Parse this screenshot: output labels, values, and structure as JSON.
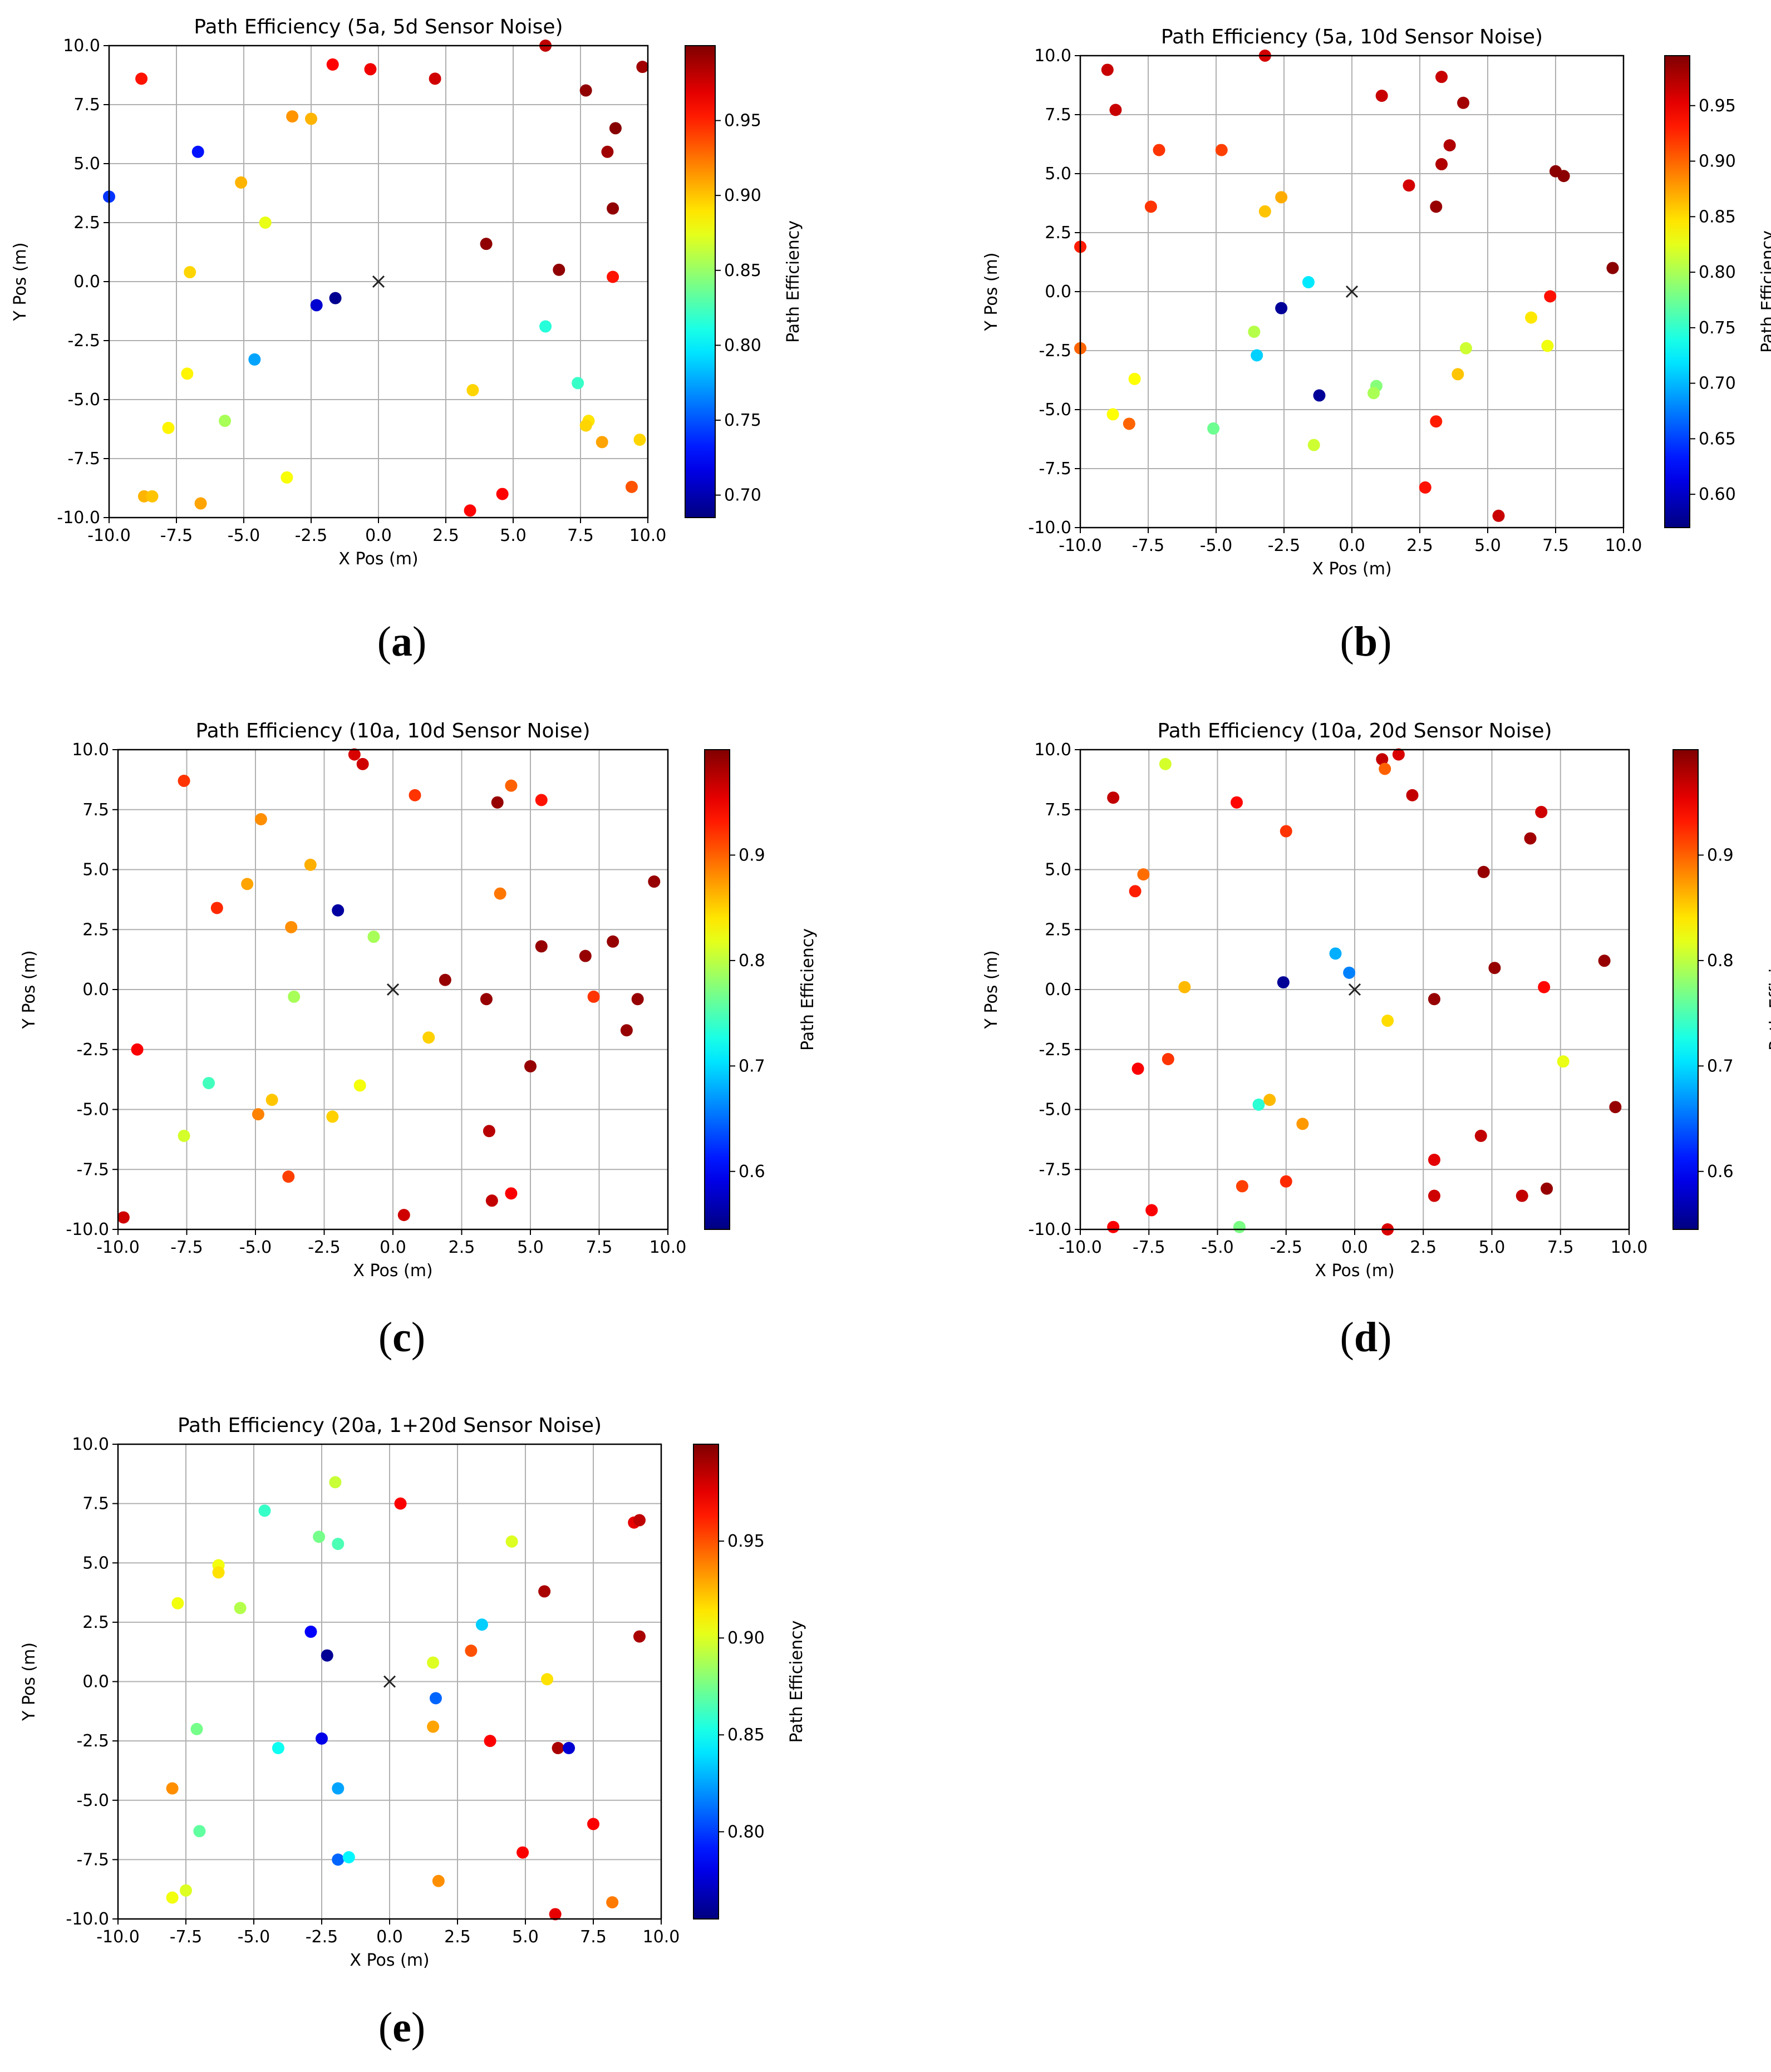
{
  "chart_data": [
    {
      "type": "scatter",
      "label": "a",
      "title": "Path Efficiency (5a, 5d Sensor Noise)",
      "xlabel": "X Pos (m)",
      "ylabel": "Y Pos (m)",
      "xlim": [
        -10,
        10
      ],
      "ylim": [
        -10,
        10
      ],
      "xticks": [
        "-10.0",
        "-7.5",
        "-5.0",
        "-2.5",
        "0.0",
        "2.5",
        "5.0",
        "7.5",
        "10.0"
      ],
      "yticks": [
        "-10.0",
        "-7.5",
        "-5.0",
        "-2.5",
        "0.0",
        "2.5",
        "5.0",
        "7.5",
        "10.0"
      ],
      "grid": true,
      "colorbar": {
        "label": "Path Efficiency",
        "min": 0.685,
        "max": 1.0,
        "ticks": [
          "0.70",
          "0.75",
          "0.80",
          "0.85",
          "0.90",
          "0.95"
        ]
      },
      "origin_marker": [
        0,
        0
      ],
      "points": [
        [
          -8.8,
          8.6,
          0.955
        ],
        [
          -1.7,
          9.2,
          0.96
        ],
        [
          -0.3,
          9.0,
          0.965
        ],
        [
          2.1,
          8.6,
          0.975
        ],
        [
          6.2,
          10.0,
          0.98
        ],
        [
          9.8,
          9.1,
          0.99
        ],
        [
          7.7,
          8.1,
          0.995
        ],
        [
          8.8,
          6.5,
          0.998
        ],
        [
          -6.7,
          5.5,
          0.73
        ],
        [
          -3.2,
          7.0,
          0.915
        ],
        [
          -2.5,
          6.9,
          0.905
        ],
        [
          8.5,
          5.5,
          0.99
        ],
        [
          -5.1,
          4.2,
          0.905
        ],
        [
          -4.2,
          2.5,
          0.875
        ],
        [
          -10.0,
          3.6,
          0.74
        ],
        [
          8.7,
          3.1,
          0.995
        ],
        [
          4.0,
          1.6,
          0.995
        ],
        [
          6.7,
          0.5,
          0.995
        ],
        [
          -7.0,
          0.4,
          0.895
        ],
        [
          8.7,
          0.2,
          0.955
        ],
        [
          -2.3,
          -1.0,
          0.71
        ],
        [
          -1.6,
          -0.7,
          0.69
        ],
        [
          0,
          0,
          null
        ],
        [
          -4.6,
          -3.3,
          0.775
        ],
        [
          6.2,
          -1.9,
          0.815
        ],
        [
          -7.1,
          -3.9,
          0.885
        ],
        [
          3.5,
          -4.6,
          0.895
        ],
        [
          7.4,
          -4.3,
          0.82
        ],
        [
          7.8,
          -5.9,
          0.89
        ],
        [
          7.7,
          -6.1,
          0.895
        ],
        [
          8.3,
          -6.8,
          0.91
        ],
        [
          9.7,
          -6.7,
          0.895
        ],
        [
          -7.8,
          -6.2,
          0.885
        ],
        [
          -5.7,
          -5.9,
          0.855
        ],
        [
          -3.4,
          -8.3,
          0.88
        ],
        [
          -8.7,
          -9.1,
          0.905
        ],
        [
          -8.4,
          -9.1,
          0.9
        ],
        [
          -6.6,
          -9.4,
          0.91
        ],
        [
          3.4,
          -9.7,
          0.96
        ],
        [
          4.6,
          -9.0,
          0.96
        ],
        [
          9.4,
          -8.7,
          0.935
        ]
      ]
    },
    {
      "type": "scatter",
      "label": "b",
      "title": "Path Efficiency (5a, 10d Sensor Noise)",
      "xlabel": "X Pos (m)",
      "ylabel": "Y Pos (m)",
      "xlim": [
        -10,
        10
      ],
      "ylim": [
        -10,
        10
      ],
      "xticks": [
        "-10.0",
        "-7.5",
        "-5.0",
        "-2.5",
        "0.0",
        "2.5",
        "5.0",
        "7.5",
        "10.0"
      ],
      "yticks": [
        "-10.0",
        "-7.5",
        "-5.0",
        "-2.5",
        "0.0",
        "2.5",
        "5.0",
        "7.5",
        "10.0"
      ],
      "grid": true,
      "colorbar": {
        "label": "Path Efficiency",
        "min": 0.57,
        "max": 0.995,
        "ticks": [
          "0.60",
          "0.65",
          "0.70",
          "0.75",
          "0.80",
          "0.85",
          "0.90",
          "0.95"
        ]
      },
      "origin_marker": [
        0,
        0
      ],
      "points": [
        [
          -9.0,
          9.4,
          0.965
        ],
        [
          -3.2,
          10.0,
          0.96
        ],
        [
          3.3,
          9.1,
          0.965
        ],
        [
          1.1,
          8.3,
          0.965
        ],
        [
          4.1,
          8.0,
          0.98
        ],
        [
          -8.7,
          7.7,
          0.965
        ],
        [
          -7.1,
          6.0,
          0.92
        ],
        [
          -4.8,
          6.0,
          0.915
        ],
        [
          3.6,
          6.2,
          0.975
        ],
        [
          3.3,
          5.4,
          0.975
        ],
        [
          7.5,
          5.1,
          0.99
        ],
        [
          7.8,
          4.9,
          0.99
        ],
        [
          2.1,
          4.5,
          0.96
        ],
        [
          -7.4,
          3.6,
          0.92
        ],
        [
          -2.6,
          4.0,
          0.87
        ],
        [
          -3.2,
          3.4,
          0.86
        ],
        [
          3.1,
          3.6,
          0.985
        ],
        [
          -10.0,
          1.9,
          0.93
        ],
        [
          9.6,
          1.0,
          0.99
        ],
        [
          -1.6,
          0.4,
          0.72
        ],
        [
          -2.6,
          -0.7,
          0.58
        ],
        [
          0,
          0,
          null
        ],
        [
          7.3,
          -0.2,
          0.935
        ],
        [
          6.6,
          -1.1,
          0.845
        ],
        [
          -3.6,
          -1.7,
          0.805
        ],
        [
          -3.5,
          -2.7,
          0.71
        ],
        [
          4.2,
          -2.4,
          0.815
        ],
        [
          7.2,
          -2.3,
          0.83
        ],
        [
          -10.0,
          -2.4,
          0.9
        ],
        [
          -8.0,
          -3.7,
          0.835
        ],
        [
          3.9,
          -3.5,
          0.86
        ],
        [
          -1.2,
          -4.4,
          0.58
        ],
        [
          -8.8,
          -5.2,
          0.835
        ],
        [
          -8.2,
          -5.6,
          0.9
        ],
        [
          0.9,
          -4.0,
          0.785
        ],
        [
          0.8,
          -4.3,
          0.8
        ],
        [
          -5.1,
          -5.8,
          0.775
        ],
        [
          3.1,
          -5.5,
          0.93
        ],
        [
          -1.4,
          -6.5,
          0.815
        ],
        [
          2.7,
          -8.3,
          0.935
        ],
        [
          5.4,
          -9.5,
          0.965
        ]
      ]
    },
    {
      "type": "scatter",
      "label": "c",
      "title": "Path Efficiency (10a, 10d Sensor Noise)",
      "xlabel": "X Pos (m)",
      "ylabel": "Y Pos (m)",
      "xlim": [
        -10,
        10
      ],
      "ylim": [
        -10,
        10
      ],
      "xticks": [
        "-10.0",
        "-7.5",
        "-5.0",
        "-2.5",
        "0.0",
        "2.5",
        "5.0",
        "7.5",
        "10.0"
      ],
      "yticks": [
        "-10.0",
        "-7.5",
        "-5.0",
        "-2.5",
        "0.0",
        "2.5",
        "5.0",
        "7.5",
        "10.0"
      ],
      "grid": true,
      "colorbar": {
        "label": "Path Efficiency",
        "min": 0.545,
        "max": 1.0,
        "ticks": [
          "0.6",
          "0.7",
          "0.8",
          "0.9"
        ]
      },
      "origin_marker": [
        0,
        0
      ],
      "points": [
        [
          -7.6,
          8.7,
          0.92
        ],
        [
          -1.4,
          9.8,
          0.96
        ],
        [
          -1.1,
          9.4,
          0.965
        ],
        [
          0.8,
          8.1,
          0.92
        ],
        [
          4.3,
          8.5,
          0.9
        ],
        [
          5.4,
          7.9,
          0.935
        ],
        [
          3.8,
          7.8,
          0.99
        ],
        [
          -4.8,
          7.1,
          0.88
        ],
        [
          -3.0,
          5.2,
          0.865
        ],
        [
          -5.3,
          4.4,
          0.87
        ],
        [
          9.5,
          4.5,
          0.99
        ],
        [
          -6.4,
          3.4,
          0.925
        ],
        [
          3.9,
          4.0,
          0.89
        ],
        [
          -3.7,
          2.6,
          0.88
        ],
        [
          -2.0,
          3.3,
          0.56
        ],
        [
          -0.7,
          2.2,
          0.79
        ],
        [
          5.4,
          1.8,
          0.99
        ],
        [
          7.0,
          1.4,
          0.99
        ],
        [
          8.0,
          2.0,
          0.99
        ],
        [
          1.9,
          0.4,
          0.99
        ],
        [
          0,
          0,
          null
        ],
        [
          -3.6,
          -0.3,
          0.79
        ],
        [
          3.4,
          -0.4,
          0.99
        ],
        [
          7.3,
          -0.3,
          0.92
        ],
        [
          8.9,
          -0.4,
          0.99
        ],
        [
          1.3,
          -2.0,
          0.85
        ],
        [
          8.5,
          -1.7,
          0.99
        ],
        [
          -9.3,
          -2.5,
          0.945
        ],
        [
          5.0,
          -3.2,
          0.99
        ],
        [
          -6.7,
          -3.9,
          0.745
        ],
        [
          -1.2,
          -4.0,
          0.825
        ],
        [
          -4.4,
          -4.6,
          0.855
        ],
        [
          -4.9,
          -5.2,
          0.885
        ],
        [
          -2.2,
          -5.3,
          0.85
        ],
        [
          3.5,
          -5.9,
          0.975
        ],
        [
          -7.6,
          -6.1,
          0.81
        ],
        [
          -3.8,
          -7.8,
          0.915
        ],
        [
          3.6,
          -8.8,
          0.97
        ],
        [
          4.3,
          -8.5,
          0.945
        ],
        [
          -9.8,
          -9.5,
          0.965
        ],
        [
          0.4,
          -9.4,
          0.965
        ]
      ]
    },
    {
      "type": "scatter",
      "label": "d",
      "title": "Path Efficiency (10a, 20d Sensor Noise)",
      "xlabel": "X Pos (m)",
      "ylabel": "Y Pos (m)",
      "xlim": [
        -10,
        10
      ],
      "ylim": [
        -10,
        10
      ],
      "xticks": [
        "-10.0",
        "-7.5",
        "-5.0",
        "-2.5",
        "0.0",
        "2.5",
        "5.0",
        "7.5",
        "10.0"
      ],
      "yticks": [
        "-10.0",
        "-7.5",
        "-5.0",
        "-2.5",
        "0.0",
        "2.5",
        "5.0",
        "7.5",
        "10.0"
      ],
      "grid": true,
      "colorbar": {
        "label": "Path Efficiency",
        "min": 0.545,
        "max": 1.0,
        "ticks": [
          "0.6",
          "0.7",
          "0.8",
          "0.9"
        ]
      },
      "origin_marker": [
        0,
        0
      ],
      "points": [
        [
          -8.8,
          8.0,
          0.97
        ],
        [
          -6.9,
          9.4,
          0.81
        ],
        [
          1.0,
          9.6,
          0.97
        ],
        [
          1.1,
          9.2,
          0.9
        ],
        [
          1.6,
          9.8,
          0.96
        ],
        [
          2.1,
          8.1,
          0.97
        ],
        [
          -4.3,
          7.8,
          0.94
        ],
        [
          -2.5,
          6.6,
          0.92
        ],
        [
          6.8,
          7.4,
          0.965
        ],
        [
          6.4,
          6.3,
          0.985
        ],
        [
          -7.7,
          4.8,
          0.895
        ],
        [
          -8.0,
          4.1,
          0.93
        ],
        [
          4.7,
          4.9,
          0.99
        ],
        [
          -0.7,
          1.5,
          0.68
        ],
        [
          -0.2,
          0.7,
          0.66
        ],
        [
          -2.6,
          0.3,
          0.555
        ],
        [
          -6.2,
          0.1,
          0.86
        ],
        [
          5.1,
          0.9,
          0.99
        ],
        [
          9.1,
          1.2,
          0.99
        ],
        [
          0,
          0,
          null
        ],
        [
          2.9,
          -0.4,
          0.99
        ],
        [
          6.9,
          0.1,
          0.94
        ],
        [
          1.2,
          -1.3,
          0.845
        ],
        [
          -7.9,
          -3.3,
          0.945
        ],
        [
          -6.8,
          -2.9,
          0.92
        ],
        [
          7.6,
          -3.0,
          0.82
        ],
        [
          -3.5,
          -4.8,
          0.735
        ],
        [
          -3.1,
          -4.6,
          0.86
        ],
        [
          9.5,
          -4.9,
          0.99
        ],
        [
          -1.9,
          -5.6,
          0.875
        ],
        [
          4.6,
          -6.1,
          0.97
        ],
        [
          2.9,
          -7.1,
          0.955
        ],
        [
          -4.1,
          -8.2,
          0.915
        ],
        [
          -2.5,
          -8.0,
          0.925
        ],
        [
          2.9,
          -8.6,
          0.965
        ],
        [
          6.1,
          -8.6,
          0.97
        ],
        [
          7.0,
          -8.3,
          0.99
        ],
        [
          -8.8,
          -9.9,
          0.945
        ],
        [
          -7.4,
          -9.2,
          0.945
        ],
        [
          -4.2,
          -9.9,
          0.77
        ],
        [
          1.2,
          -10.0,
          0.96
        ]
      ]
    },
    {
      "type": "scatter",
      "label": "e",
      "title": "Path Efficiency (20a, 1+20d Sensor Noise)",
      "xlabel": "X Pos (m)",
      "ylabel": "Y Pos (m)",
      "xlim": [
        -10,
        10
      ],
      "ylim": [
        -10,
        10
      ],
      "xticks": [
        "-10.0",
        "-7.5",
        "-5.0",
        "-2.5",
        "0.0",
        "2.5",
        "5.0",
        "7.5",
        "10.0"
      ],
      "yticks": [
        "-10.0",
        "-7.5",
        "-5.0",
        "-2.5",
        "0.0",
        "2.5",
        "5.0",
        "7.5",
        "10.0"
      ],
      "grid": true,
      "colorbar": {
        "label": "Path Efficiency",
        "min": 0.755,
        "max": 1.0,
        "ticks": [
          "0.80",
          "0.85",
          "0.90",
          "0.95"
        ]
      },
      "origin_marker": [
        0,
        0
      ],
      "points": [
        [
          -2.0,
          8.4,
          0.895
        ],
        [
          0.4,
          7.5,
          0.97
        ],
        [
          -4.6,
          7.2,
          0.86
        ],
        [
          -2.6,
          6.1,
          0.875
        ],
        [
          -1.9,
          5.8,
          0.865
        ],
        [
          4.5,
          5.9,
          0.9
        ],
        [
          9.0,
          6.7,
          0.975
        ],
        [
          9.2,
          6.8,
          0.985
        ],
        [
          -6.3,
          4.9,
          0.905
        ],
        [
          -6.3,
          4.6,
          0.915
        ],
        [
          -7.8,
          3.3,
          0.905
        ],
        [
          -5.5,
          3.1,
          0.89
        ],
        [
          5.7,
          3.8,
          0.99
        ],
        [
          3.4,
          2.4,
          0.835
        ],
        [
          -2.9,
          2.1,
          0.785
        ],
        [
          -2.3,
          1.1,
          0.76
        ],
        [
          9.2,
          1.9,
          0.99
        ],
        [
          3.0,
          1.3,
          0.95
        ],
        [
          1.6,
          0.8,
          0.9
        ],
        [
          0,
          0,
          null
        ],
        [
          5.8,
          0.1,
          0.915
        ],
        [
          1.7,
          -0.7,
          0.81
        ],
        [
          -7.1,
          -2.0,
          0.875
        ],
        [
          1.6,
          -1.9,
          0.93
        ],
        [
          -2.5,
          -2.4,
          0.78
        ],
        [
          3.7,
          -2.5,
          0.97
        ],
        [
          6.2,
          -2.8,
          0.99
        ],
        [
          6.6,
          -2.8,
          0.775
        ],
        [
          -4.1,
          -2.8,
          0.85
        ],
        [
          -1.9,
          -4.5,
          0.825
        ],
        [
          -8.0,
          -4.5,
          0.935
        ],
        [
          -7.0,
          -6.3,
          0.87
        ],
        [
          7.5,
          -6.0,
          0.97
        ],
        [
          -1.9,
          -7.5,
          0.81
        ],
        [
          -1.5,
          -7.4,
          0.845
        ],
        [
          4.9,
          -7.2,
          0.97
        ],
        [
          1.8,
          -8.4,
          0.935
        ],
        [
          -7.5,
          -8.8,
          0.9
        ],
        [
          -8.0,
          -9.1,
          0.905
        ],
        [
          8.2,
          -9.3,
          0.94
        ],
        [
          6.1,
          -9.8,
          0.975
        ]
      ]
    }
  ]
}
